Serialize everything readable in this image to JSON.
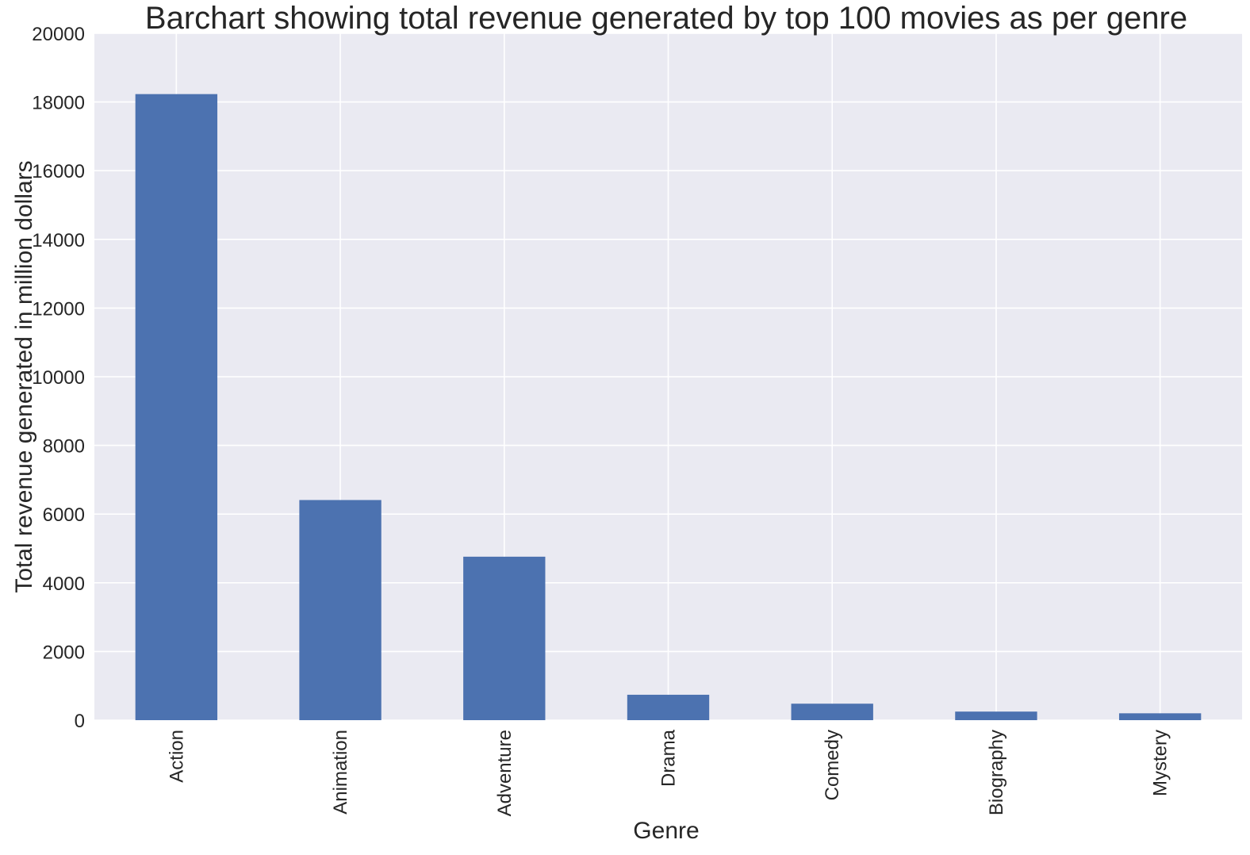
{
  "chart_data": {
    "type": "bar",
    "title": "Barchart showing total revenue generated by top 100 movies as per genre",
    "xlabel": "Genre",
    "ylabel": "Total revenue generated in million dollars",
    "categories": [
      "Action",
      "Animation",
      "Adventure",
      "Drama",
      "Comedy",
      "Biography",
      "Mystery"
    ],
    "values": [
      18230,
      6410,
      4760,
      740,
      480,
      250,
      200
    ],
    "ylim": [
      0,
      20000
    ],
    "yticks": [
      0,
      2000,
      4000,
      6000,
      8000,
      10000,
      12000,
      14000,
      16000,
      18000,
      20000
    ],
    "grid": true,
    "colors": {
      "bar": "#4C72B0",
      "plot_background": "#EAEAF2",
      "grid": "#FFFFFF",
      "text": "#262626"
    }
  }
}
